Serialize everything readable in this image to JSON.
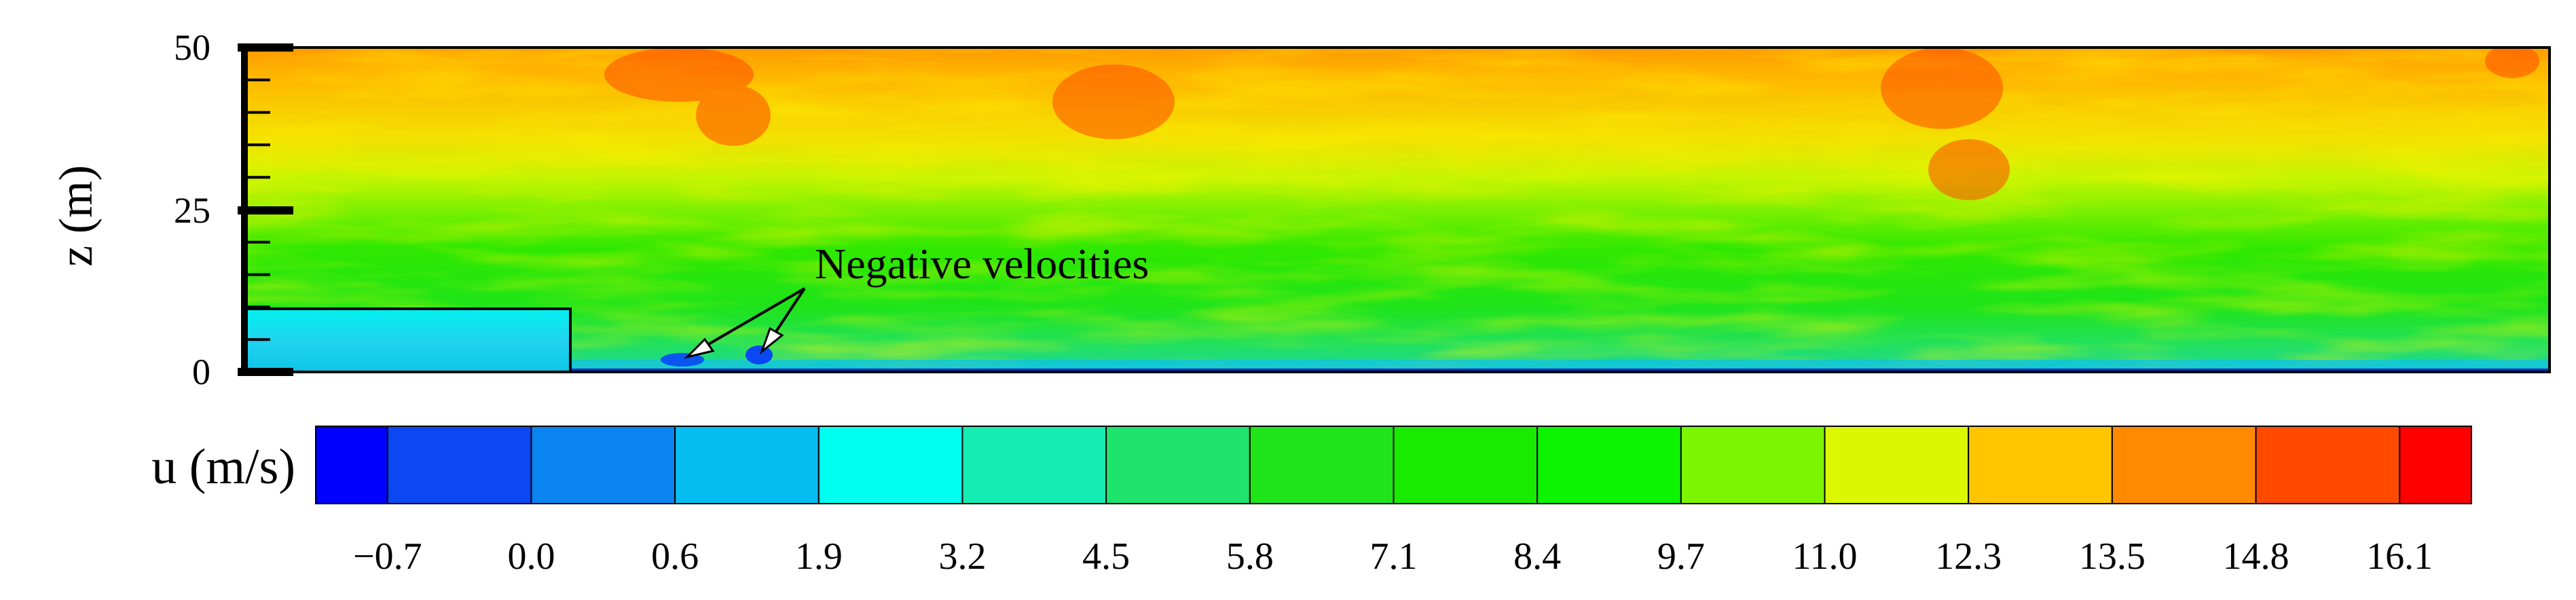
{
  "chart_data": {
    "type": "heatmap",
    "title": "",
    "ylabel": "z (m)",
    "y_ticks": [
      "50",
      "25",
      "0"
    ],
    "ylim": [
      0,
      50
    ],
    "annotation": "Negative velocities",
    "colorbar": {
      "label": "u (m/s)",
      "tick_labels": [
        "−0.7",
        "0.0",
        "0.6",
        "1.9",
        "3.2",
        "4.5",
        "5.8",
        "7.1",
        "8.4",
        "9.7",
        "11.0",
        "12.3",
        "13.5",
        "14.8",
        "16.1"
      ],
      "colors": [
        "#0000ff",
        "#0b48f2",
        "#0a84f0",
        "#06bdf2",
        "#00ffee",
        "#14ecb2",
        "#1ee46e",
        "#1fe41a",
        "#19eb00",
        "#0cf400",
        "#7cf500",
        "#dcf800",
        "#ffc600",
        "#ff8a00",
        "#ff4a00",
        "#ff0000"
      ]
    }
  }
}
